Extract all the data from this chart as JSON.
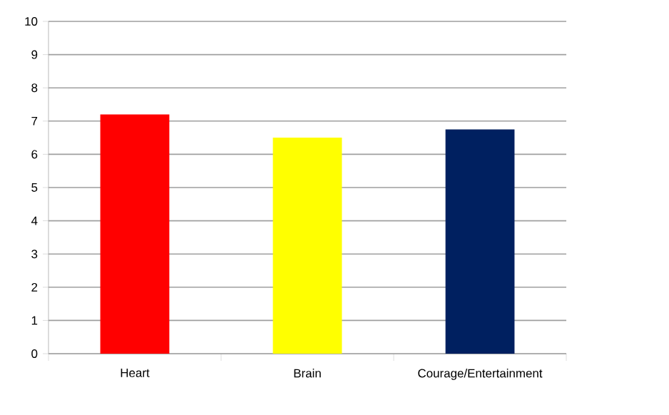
{
  "chart_data": {
    "type": "bar",
    "categories": [
      "Heart",
      "Brain",
      "Courage/Entertainment"
    ],
    "values": [
      7.2,
      6.5,
      6.75
    ],
    "colors": [
      "#ff0000",
      "#ffff00",
      "#002060"
    ],
    "ylim": [
      0,
      10
    ],
    "yticks": [
      0,
      1,
      2,
      3,
      4,
      5,
      6,
      7,
      8,
      9,
      10
    ],
    "grid": "y"
  }
}
